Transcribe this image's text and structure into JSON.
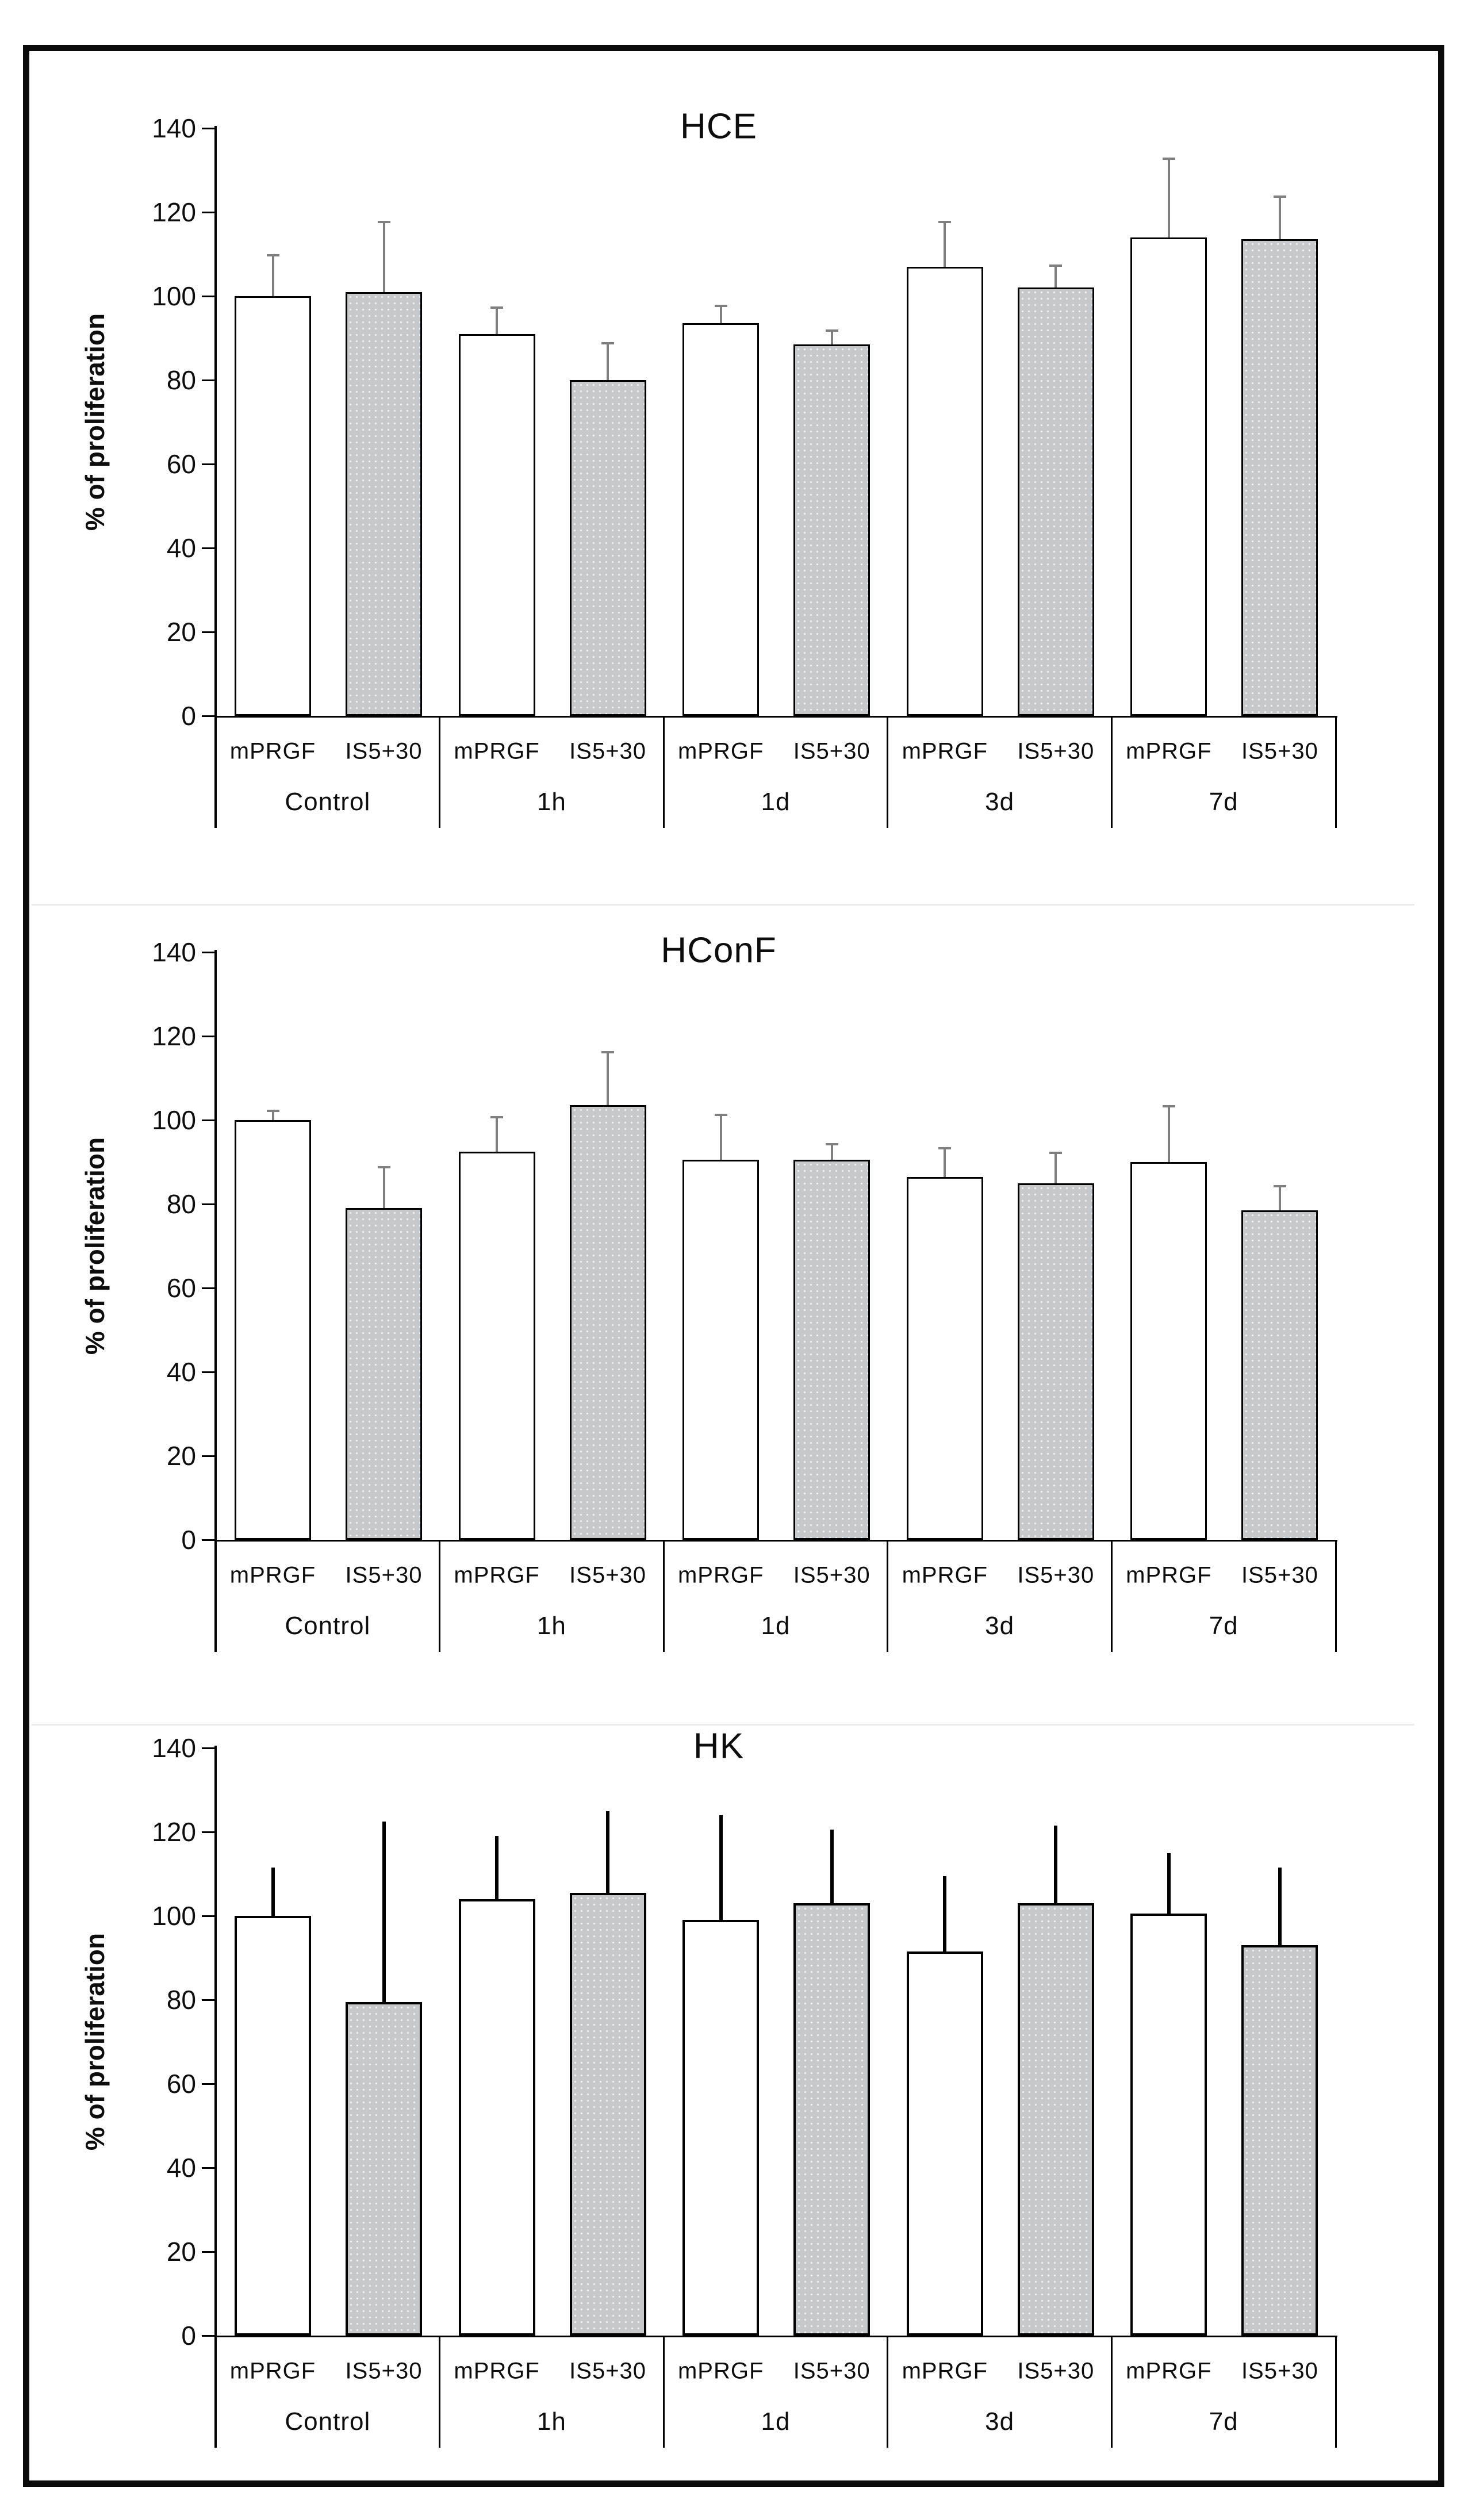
{
  "figure": {
    "y_axis_label": "% of proliferation",
    "y_ticks": [
      0,
      20,
      40,
      60,
      80,
      100,
      120,
      140
    ],
    "group_labels": [
      "Control",
      "1h",
      "1d",
      "3d",
      "7d"
    ],
    "series_labels": [
      "mPRGF",
      "IS5+30"
    ],
    "colors": {
      "bar_outline": "#000000",
      "white_bar_fill": "#ffffff",
      "gray_bar_fill": "#c6c8ca",
      "error_gray": "#7f7f7f",
      "error_black": "#000000",
      "figure_border": "#0b0b0b",
      "panel_separator": "#ebebeb"
    }
  },
  "chart_data": [
    {
      "type": "bar",
      "title": "HCE",
      "xlabel": "",
      "ylabel": "% of proliferation",
      "ylim": [
        0,
        140
      ],
      "grid": false,
      "legend": "none",
      "categories": [
        "Control",
        "1h",
        "1d",
        "3d",
        "7d"
      ],
      "error_style": "gray-capped",
      "series": [
        {
          "name": "mPRGF",
          "fill": "white",
          "values": [
            100,
            91,
            93.5,
            107,
            114
          ],
          "errors_plus": [
            10,
            6.5,
            4.5,
            11,
            19
          ]
        },
        {
          "name": "IS5+30",
          "fill": "gray",
          "values": [
            101,
            80,
            88.5,
            102,
            113.5
          ],
          "errors_plus": [
            17,
            9,
            3.5,
            5.5,
            10.5
          ]
        }
      ]
    },
    {
      "type": "bar",
      "title": "HConF",
      "xlabel": "",
      "ylabel": "% of proliferation",
      "ylim": [
        0,
        140
      ],
      "grid": false,
      "legend": "none",
      "categories": [
        "Control",
        "1h",
        "1d",
        "3d",
        "7d"
      ],
      "error_style": "gray-capped",
      "series": [
        {
          "name": "mPRGF",
          "fill": "white",
          "values": [
            100,
            92.5,
            90.5,
            86.5,
            90
          ],
          "errors_plus": [
            2.5,
            8.5,
            11,
            7,
            13.5
          ]
        },
        {
          "name": "IS5+30",
          "fill": "gray",
          "values": [
            79,
            103.5,
            90.5,
            85,
            78.5
          ],
          "errors_plus": [
            10,
            13,
            4,
            7.5,
            6
          ]
        }
      ]
    },
    {
      "type": "bar",
      "title": "HK",
      "xlabel": "",
      "ylabel": "% of proliferation",
      "ylim": [
        0,
        140
      ],
      "grid": false,
      "legend": "none",
      "categories": [
        "Control",
        "1h",
        "1d",
        "3d",
        "7d"
      ],
      "error_style": "black-thick",
      "series": [
        {
          "name": "mPRGF",
          "fill": "white",
          "values": [
            100,
            104,
            99,
            91.5,
            100.5
          ],
          "errors_plus": [
            11.5,
            15,
            25,
            18,
            14.5
          ]
        },
        {
          "name": "IS5+30",
          "fill": "gray",
          "values": [
            79.5,
            105.5,
            103,
            103,
            93
          ],
          "errors_plus": [
            43,
            19.5,
            17.5,
            18.5,
            18.5
          ]
        }
      ]
    }
  ]
}
